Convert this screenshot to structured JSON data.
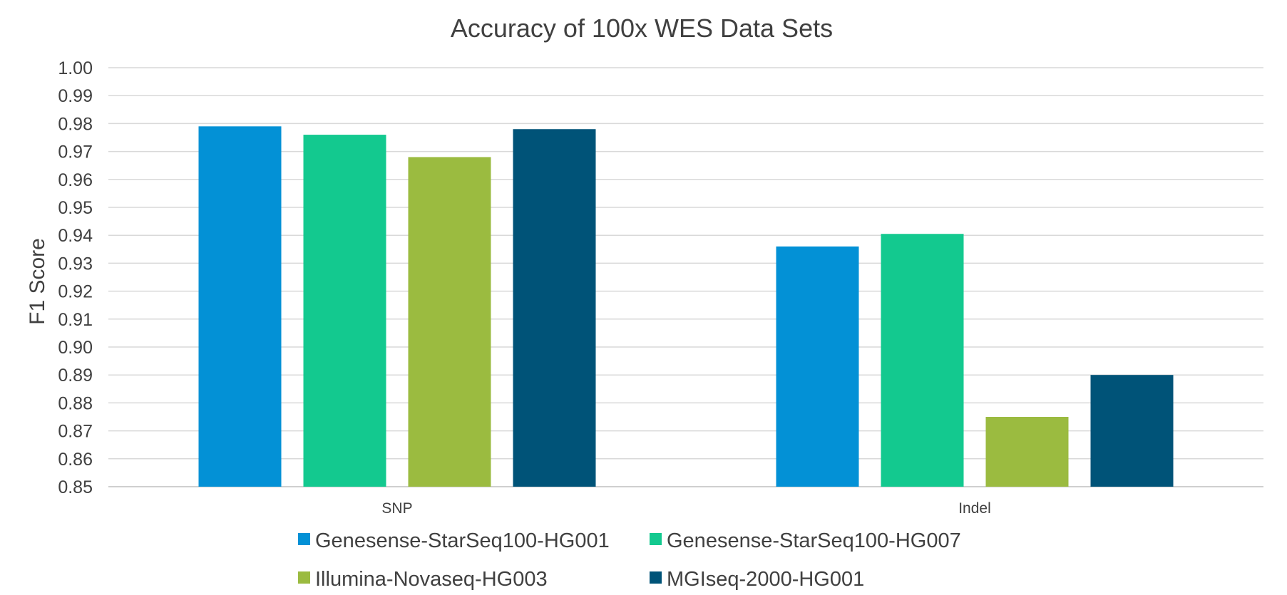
{
  "chart_data": {
    "type": "bar",
    "title": "Accuracy of 100x WES Data Sets",
    "xlabel": "",
    "ylabel": "F1 Score",
    "ylim": [
      0.85,
      1.0
    ],
    "ytick_step": 0.01,
    "yticks": [
      "0.85",
      "0.86",
      "0.87",
      "0.88",
      "0.89",
      "0.90",
      "0.91",
      "0.92",
      "0.93",
      "0.94",
      "0.95",
      "0.96",
      "0.97",
      "0.98",
      "0.99",
      "1.00"
    ],
    "grid": true,
    "legend_position": "bottom",
    "categories": [
      "SNP",
      "Indel"
    ],
    "series": [
      {
        "name": "Genesense-StarSeq100-HG001",
        "color": "#0391d6",
        "values": [
          0.979,
          0.936
        ]
      },
      {
        "name": "Genesense-StarSeq100-HG007",
        "color": "#13c98f",
        "values": [
          0.976,
          0.9405
        ]
      },
      {
        "name": "Illumina-Novaseq-HG003",
        "color": "#9bbb40",
        "values": [
          0.968,
          0.875
        ]
      },
      {
        "name": "MGIseq-2000-HG001",
        "color": "#005378",
        "values": [
          0.978,
          0.89
        ]
      }
    ]
  }
}
